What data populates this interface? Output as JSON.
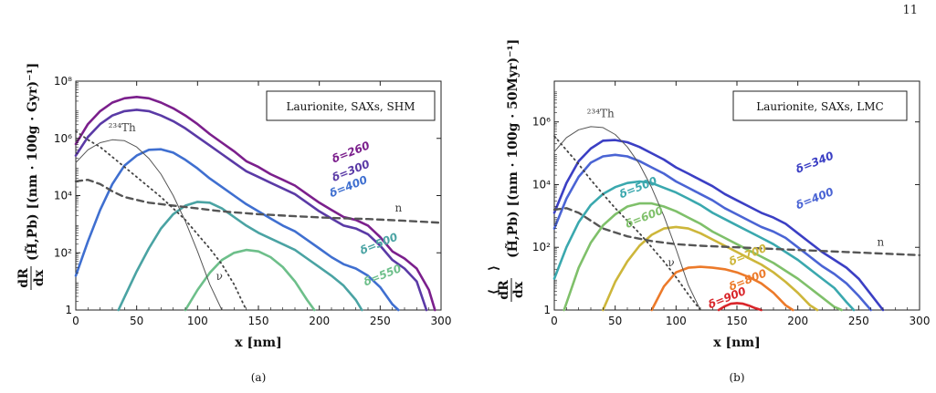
{
  "page_number": "11",
  "chart_data": [
    {
      "type": "line",
      "panel_caption": "(a)",
      "legend": "Laurionite, SAXs, SHM",
      "xlabel": "x [nm]",
      "ylabel_fraction_top": "dR",
      "ylabel_fraction_bottom": "dx",
      "ylabel_rest": "(H̃,Pb) [(nm · 100g · Gyr)⁻¹]",
      "xlim": [
        0,
        300
      ],
      "ylim_log10": [
        0,
        8
      ],
      "log_y": true,
      "x_ticks": [
        "0",
        "50",
        "100",
        "150",
        "200",
        "250",
        "300"
      ],
      "y_ticks": [
        {
          "exp": 0,
          "label": "1"
        },
        {
          "exp": 2,
          "label": "10²"
        },
        {
          "exp": 4,
          "label": "10⁴"
        },
        {
          "exp": 6,
          "label": "10⁶"
        },
        {
          "exp": 8,
          "label": "10⁸"
        }
      ],
      "series": [
        {
          "name": "δ=260",
          "color": "#7b1f8c",
          "style": "solid",
          "label_x": 227,
          "label_log": 5.4,
          "x": [
            0,
            10,
            20,
            30,
            40,
            50,
            60,
            70,
            80,
            90,
            100,
            110,
            120,
            130,
            140,
            150,
            160,
            170,
            180,
            190,
            200,
            210,
            220,
            230,
            240,
            250,
            260,
            270,
            280,
            290,
            295
          ],
          "log10y": [
            5.8,
            6.5,
            6.95,
            7.25,
            7.4,
            7.45,
            7.4,
            7.25,
            7.05,
            6.8,
            6.5,
            6.15,
            5.85,
            5.55,
            5.2,
            5.0,
            4.75,
            4.55,
            4.35,
            4.05,
            3.75,
            3.5,
            3.25,
            3.15,
            2.95,
            2.55,
            2.05,
            1.8,
            1.45,
            0.7,
            0.0
          ]
        },
        {
          "name": "δ=300",
          "color": "#5a3aa6",
          "style": "solid",
          "label_x": 227,
          "label_log": 4.75,
          "x": [
            0,
            10,
            20,
            30,
            40,
            50,
            60,
            70,
            80,
            90,
            100,
            110,
            120,
            130,
            140,
            150,
            160,
            170,
            180,
            190,
            200,
            210,
            220,
            230,
            240,
            250,
            260,
            270,
            280,
            288
          ],
          "log10y": [
            5.4,
            6.05,
            6.5,
            6.8,
            6.95,
            7.0,
            6.95,
            6.8,
            6.6,
            6.35,
            6.05,
            5.75,
            5.45,
            5.15,
            4.85,
            4.65,
            4.45,
            4.25,
            4.05,
            3.75,
            3.45,
            3.2,
            2.95,
            2.85,
            2.65,
            2.25,
            1.75,
            1.45,
            1.0,
            0.0
          ]
        },
        {
          "name": "δ=400",
          "color": "#3f6fd0",
          "style": "solid",
          "label_x": 225,
          "label_log": 4.2,
          "x": [
            0,
            10,
            20,
            30,
            40,
            50,
            60,
            70,
            80,
            90,
            100,
            110,
            120,
            130,
            140,
            150,
            160,
            170,
            180,
            190,
            200,
            210,
            220,
            230,
            240,
            250,
            260,
            265
          ],
          "log10y": [
            1.2,
            2.4,
            3.5,
            4.4,
            5.05,
            5.4,
            5.6,
            5.62,
            5.5,
            5.25,
            4.95,
            4.6,
            4.3,
            4.0,
            3.7,
            3.45,
            3.2,
            2.95,
            2.75,
            2.45,
            2.15,
            1.85,
            1.6,
            1.45,
            1.2,
            0.8,
            0.2,
            0.0
          ]
        },
        {
          "name": "δ=500",
          "color": "#4aa3a3",
          "style": "solid",
          "label_x": 250,
          "label_log": 2.2,
          "x": [
            35,
            40,
            50,
            60,
            70,
            80,
            90,
            100,
            110,
            120,
            130,
            140,
            150,
            160,
            170,
            180,
            190,
            200,
            210,
            220,
            230,
            235
          ],
          "log10y": [
            0.0,
            0.45,
            1.35,
            2.15,
            2.85,
            3.35,
            3.65,
            3.78,
            3.75,
            3.55,
            3.25,
            2.95,
            2.7,
            2.5,
            2.3,
            2.1,
            1.8,
            1.5,
            1.2,
            0.85,
            0.35,
            0.0
          ]
        },
        {
          "name": "δ=550",
          "color": "#6dbf8a",
          "style": "solid",
          "label_x": 253,
          "label_log": 1.1,
          "x": [
            90,
            100,
            110,
            120,
            130,
            140,
            150,
            160,
            170,
            180,
            190,
            196
          ],
          "log10y": [
            0.0,
            0.7,
            1.3,
            1.75,
            2.0,
            2.1,
            2.05,
            1.85,
            1.5,
            1.0,
            0.35,
            0.0
          ]
        },
        {
          "name": "²³⁴Th",
          "color": "#555555",
          "style": "thin",
          "label_x": 38,
          "label_log": 6.25,
          "x": [
            0,
            10,
            20,
            30,
            40,
            50,
            60,
            70,
            80,
            90,
            100,
            110,
            120
          ],
          "log10y": [
            5.15,
            5.6,
            5.85,
            5.95,
            5.92,
            5.7,
            5.3,
            4.75,
            4.0,
            3.1,
            2.05,
            0.9,
            0.0
          ]
        },
        {
          "name": "n",
          "color": "#555555",
          "style": "dashed",
          "label_x": 265,
          "label_log": 3.45,
          "x": [
            0,
            10,
            20,
            30,
            40,
            60,
            80,
            100,
            120,
            150,
            180,
            210,
            240,
            270,
            300
          ],
          "log10y": [
            4.5,
            4.55,
            4.4,
            4.15,
            3.95,
            3.75,
            3.65,
            3.55,
            3.45,
            3.35,
            3.28,
            3.22,
            3.18,
            3.12,
            3.05
          ]
        },
        {
          "name": "ν",
          "color": "#444444",
          "style": "dotted",
          "label_x": 118,
          "label_log": 1.05,
          "x": [
            0,
            10,
            20,
            30,
            40,
            50,
            60,
            70,
            80,
            90,
            100,
            110,
            120,
            130,
            140
          ],
          "log10y": [
            6.25,
            5.95,
            5.7,
            5.35,
            5.0,
            4.65,
            4.3,
            3.95,
            3.55,
            3.15,
            2.65,
            2.15,
            1.6,
            0.9,
            0.0
          ]
        }
      ]
    },
    {
      "type": "line",
      "panel_caption": "(b)",
      "legend": "Laurionite, SAXs, LMC",
      "xlabel": "x [nm]",
      "ylabel_fraction_top": "dR",
      "ylabel_fraction_bottom": "dx",
      "ylabel_rest": "(H̃,Pb) [(nm · 100g · 50Myr)⁻¹]",
      "xlim": [
        0,
        300
      ],
      "ylim_log10": [
        0,
        7.3
      ],
      "log_y": true,
      "x_ticks": [
        "0",
        "50",
        "100",
        "150",
        "200",
        "250",
        "300"
      ],
      "y_ticks": [
        {
          "exp": 0,
          "label": "1"
        },
        {
          "exp": 2,
          "label": "10²"
        },
        {
          "exp": 4,
          "label": "10⁴"
        },
        {
          "exp": 6,
          "label": "10⁶"
        }
      ],
      "series": [
        {
          "name": "δ=340",
          "color": "#3b3fc4",
          "style": "solid",
          "label_x": 215,
          "label_log": 4.6,
          "x": [
            0,
            10,
            20,
            30,
            40,
            50,
            60,
            70,
            80,
            90,
            100,
            110,
            120,
            130,
            140,
            150,
            160,
            170,
            180,
            190,
            200,
            210,
            220,
            230,
            240,
            250,
            260,
            270
          ],
          "log10y": [
            3.1,
            4.05,
            4.75,
            5.15,
            5.4,
            5.42,
            5.35,
            5.2,
            5.0,
            4.8,
            4.55,
            4.35,
            4.15,
            3.95,
            3.7,
            3.5,
            3.3,
            3.1,
            2.95,
            2.75,
            2.45,
            2.15,
            1.85,
            1.6,
            1.35,
            1.0,
            0.5,
            0.0
          ]
        },
        {
          "name": "δ=400",
          "color": "#4a64d4",
          "style": "solid",
          "label_x": 215,
          "label_log": 3.45,
          "x": [
            0,
            10,
            20,
            30,
            40,
            50,
            60,
            70,
            80,
            90,
            100,
            110,
            120,
            130,
            140,
            150,
            160,
            170,
            180,
            190,
            200,
            210,
            220,
            230,
            240,
            250,
            260
          ],
          "log10y": [
            2.6,
            3.55,
            4.25,
            4.7,
            4.9,
            4.95,
            4.9,
            4.75,
            4.55,
            4.35,
            4.1,
            3.9,
            3.7,
            3.5,
            3.25,
            3.05,
            2.85,
            2.65,
            2.5,
            2.3,
            2.0,
            1.7,
            1.4,
            1.15,
            0.85,
            0.45,
            0.0
          ]
        },
        {
          "name": "δ=500",
          "color": "#3aa8ae",
          "style": "solid",
          "label_x": 70,
          "label_log": 3.8,
          "x": [
            0,
            10,
            20,
            30,
            40,
            50,
            60,
            70,
            80,
            90,
            100,
            110,
            120,
            130,
            140,
            150,
            160,
            170,
            180,
            190,
            200,
            210,
            220,
            230,
            240,
            246
          ],
          "log10y": [
            1.0,
            2.0,
            2.8,
            3.35,
            3.7,
            3.92,
            4.05,
            4.1,
            4.05,
            3.9,
            3.75,
            3.55,
            3.35,
            3.1,
            2.9,
            2.7,
            2.5,
            2.3,
            2.1,
            1.85,
            1.6,
            1.3,
            1.0,
            0.7,
            0.25,
            0.0
          ]
        },
        {
          "name": "δ=600",
          "color": "#7fc06a",
          "style": "solid",
          "label_x": 75,
          "label_log": 2.85,
          "x": [
            8,
            20,
            30,
            40,
            50,
            60,
            70,
            80,
            90,
            100,
            110,
            120,
            130,
            140,
            150,
            160,
            170,
            180,
            190,
            200,
            210,
            220,
            230,
            236
          ],
          "log10y": [
            0.0,
            1.35,
            2.15,
            2.7,
            3.05,
            3.3,
            3.4,
            3.4,
            3.3,
            3.15,
            2.95,
            2.75,
            2.5,
            2.3,
            2.1,
            1.9,
            1.7,
            1.5,
            1.25,
            1.0,
            0.7,
            0.4,
            0.1,
            0.0
          ]
        },
        {
          "name": "δ=700",
          "color": "#cdb63a",
          "style": "solid",
          "label_x": 160,
          "label_log": 1.65,
          "x": [
            40,
            50,
            60,
            70,
            80,
            90,
            100,
            110,
            120,
            130,
            140,
            150,
            160,
            170,
            180,
            190,
            200,
            210,
            216
          ],
          "log10y": [
            0.0,
            0.9,
            1.55,
            2.05,
            2.4,
            2.6,
            2.65,
            2.6,
            2.45,
            2.25,
            2.05,
            1.85,
            1.65,
            1.45,
            1.2,
            0.9,
            0.55,
            0.15,
            0.0
          ]
        },
        {
          "name": "δ=800",
          "color": "#ec7a2a",
          "style": "solid",
          "label_x": 160,
          "label_log": 0.85,
          "x": [
            80,
            90,
            100,
            110,
            120,
            130,
            140,
            150,
            160,
            170,
            180,
            190,
            196
          ],
          "log10y": [
            0.0,
            0.75,
            1.2,
            1.35,
            1.38,
            1.35,
            1.3,
            1.2,
            1.05,
            0.85,
            0.55,
            0.15,
            0.0
          ]
        },
        {
          "name": "δ=900",
          "color": "#d9262b",
          "style": "solid",
          "label_x": 143,
          "label_log": 0.28,
          "x": [
            135,
            140,
            145,
            150,
            155,
            160,
            165,
            170
          ],
          "log10y": [
            0.0,
            0.12,
            0.2,
            0.22,
            0.2,
            0.14,
            0.06,
            0.0
          ]
        },
        {
          "name": "²³⁴Th",
          "color": "#555555",
          "style": "thin",
          "label_x": 38,
          "label_log": 6.15,
          "x": [
            0,
            10,
            20,
            30,
            40,
            50,
            60,
            70,
            80,
            90,
            100,
            110,
            120
          ],
          "log10y": [
            5.05,
            5.5,
            5.75,
            5.85,
            5.82,
            5.6,
            5.2,
            4.65,
            3.9,
            3.0,
            1.95,
            0.8,
            0.0
          ]
        },
        {
          "name": "n",
          "color": "#555555",
          "style": "dashed",
          "label_x": 268,
          "label_log": 2.05,
          "x": [
            0,
            10,
            20,
            30,
            40,
            60,
            80,
            100,
            120,
            150,
            180,
            210,
            240,
            270,
            300
          ],
          "log10y": [
            3.2,
            3.25,
            3.1,
            2.85,
            2.6,
            2.35,
            2.2,
            2.1,
            2.05,
            2.0,
            1.95,
            1.9,
            1.85,
            1.8,
            1.75
          ]
        },
        {
          "name": "ν",
          "color": "#444444",
          "style": "dotted",
          "label_x": 96,
          "label_log": 1.4,
          "x": [
            0,
            10,
            20,
            30,
            40,
            50,
            60,
            70,
            80,
            90,
            100,
            110,
            120
          ],
          "log10y": [
            5.55,
            5.1,
            4.65,
            4.15,
            3.7,
            3.25,
            2.85,
            2.45,
            2.0,
            1.55,
            1.05,
            0.5,
            0.0
          ]
        }
      ]
    }
  ]
}
